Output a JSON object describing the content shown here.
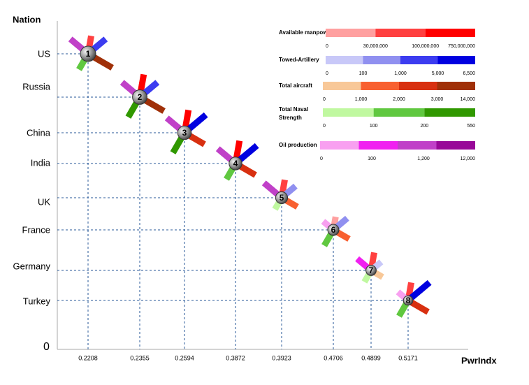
{
  "chart_data": {
    "type": "glyph",
    "y_title": "Nation",
    "x_title": "PwrIndx",
    "origin_label": "0",
    "nations": [
      {
        "name": "US",
        "rank": 1,
        "pwrindx": 0.2208,
        "levels": [
          2,
          3,
          4,
          2,
          3
        ]
      },
      {
        "name": "Russia",
        "rank": 2,
        "pwrindx": 0.2355,
        "levels": [
          3,
          3,
          4,
          3,
          3
        ]
      },
      {
        "name": "China",
        "rank": 3,
        "pwrindx": 0.2594,
        "levels": [
          3,
          4,
          3,
          3,
          3
        ]
      },
      {
        "name": "India",
        "rank": 4,
        "pwrindx": 0.3872,
        "levels": [
          3,
          4,
          3,
          2,
          3
        ]
      },
      {
        "name": "UK",
        "rank": 5,
        "pwrindx": 0.3923,
        "levels": [
          2,
          2,
          2,
          1,
          3
        ]
      },
      {
        "name": "France",
        "rank": 6,
        "pwrindx": 0.4706,
        "levels": [
          1,
          2,
          2,
          2,
          1
        ]
      },
      {
        "name": "Germany",
        "rank": 7,
        "pwrindx": 0.4899,
        "levels": [
          2,
          1,
          1,
          1,
          2
        ]
      },
      {
        "name": "Turkey",
        "rank": 8,
        "pwrindx": 0.5171,
        "levels": [
          2,
          4,
          3,
          2,
          1
        ]
      }
    ],
    "indicators": [
      {
        "name": "Available manpower",
        "colors": [
          "#ffa0a0",
          "#ff4040",
          "#ff0000"
        ],
        "ticks": [
          0,
          {
            "value": 30000000,
            "label": "30,000,000"
          },
          {
            "value": 100000000,
            "label": "100,000,000"
          },
          {
            "value": 750000000,
            "label": "750,000,000"
          }
        ]
      },
      {
        "name": "Towed-Artillery",
        "colors": [
          "#c8c8f8",
          "#9090f0",
          "#3c3cf0",
          "#0000e0"
        ],
        "ticks": [
          0,
          100,
          {
            "value": 1000,
            "label": "1,000"
          },
          {
            "value": 5000,
            "label": "5,000"
          },
          {
            "value": 6500,
            "label": "6,500"
          }
        ]
      },
      {
        "name": "Total aircraft",
        "colors": [
          "#f8c898",
          "#f86030",
          "#d83010",
          "#a03008"
        ],
        "ticks": [
          0,
          {
            "value": 1000,
            "label": "1,000"
          },
          {
            "value": 2000,
            "label": "2,000"
          },
          {
            "value": 3000,
            "label": "3,000"
          },
          {
            "value": 14000,
            "label": "14,000"
          }
        ]
      },
      {
        "name": "Total Naval Strength",
        "colors": [
          "#c0f8a0",
          "#60c840",
          "#309800"
        ],
        "ticks": [
          0,
          100,
          200,
          550
        ]
      },
      {
        "name": "Oil production",
        "colors": [
          "#f8a0f0",
          "#f020f0",
          "#c040c8",
          "#980898"
        ],
        "ticks": [
          0,
          100,
          {
            "value": 1200,
            "label": "1,200"
          },
          {
            "value": 12000,
            "label": "12,000"
          }
        ]
      }
    ]
  }
}
